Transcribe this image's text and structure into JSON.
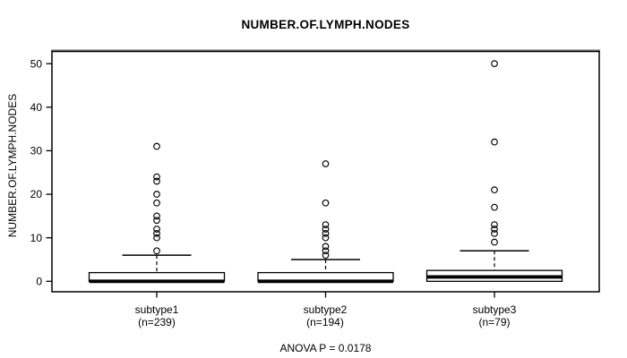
{
  "chart_data": {
    "type": "boxplot",
    "title": "NUMBER.OF.LYMPH.NODES",
    "ylabel": "NUMBER.OF.LYMPH.NODES",
    "xlabel": "",
    "annotation": "ANOVA P = 0.0178",
    "yticks": [
      0,
      10,
      20,
      30,
      40,
      50
    ],
    "ylim": [
      -2.4,
      52.8
    ],
    "grid": false,
    "legend": "none",
    "groups": [
      {
        "label": "subtype1",
        "sublabel": "(n=239)",
        "n": 239,
        "q1": 0,
        "median": 0,
        "q3": 2,
        "whisker_low": 0,
        "whisker_high": 6,
        "outliers": [
          7,
          10,
          11,
          12,
          14,
          15,
          18,
          20,
          23,
          24,
          31
        ]
      },
      {
        "label": "subtype2",
        "sublabel": "(n=194)",
        "n": 194,
        "q1": 0,
        "median": 0,
        "q3": 2,
        "whisker_low": 0,
        "whisker_high": 5,
        "outliers": [
          6,
          7,
          8,
          10,
          11,
          12,
          13,
          18,
          27
        ]
      },
      {
        "label": "subtype3",
        "sublabel": "(n=79)",
        "n": 79,
        "q1": 0,
        "median": 1,
        "q3": 2.5,
        "whisker_low": 0,
        "whisker_high": 7,
        "outliers": [
          9,
          11,
          12,
          13,
          17,
          21,
          32,
          50
        ]
      }
    ],
    "colors": {
      "background": "#ffffff",
      "box_fill": "#ffffff",
      "stroke": "#000000",
      "frame_shadow": "#7a7a7a"
    }
  }
}
